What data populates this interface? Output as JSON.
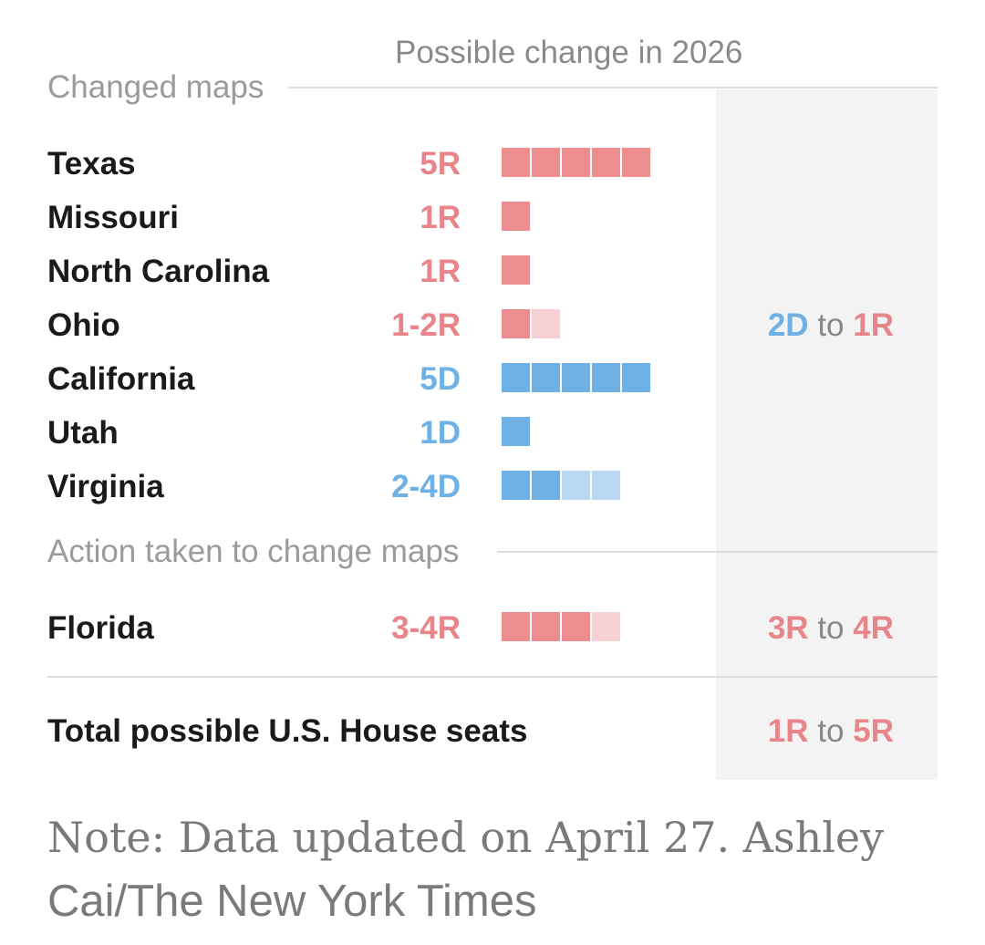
{
  "chart_data": {
    "type": "bar",
    "title": "Possible change in 2026",
    "sections": [
      {
        "label": "Changed maps",
        "rows": [
          {
            "state": "Texas",
            "label": "5R",
            "party": "R",
            "certain": 5,
            "possible": 0
          },
          {
            "state": "Missouri",
            "label": "1R",
            "party": "R",
            "certain": 1,
            "possible": 0
          },
          {
            "state": "North Carolina",
            "label": "1R",
            "party": "R",
            "certain": 1,
            "possible": 0
          },
          {
            "state": "Ohio",
            "label": "1-2R",
            "party": "R",
            "certain": 1,
            "possible": 1
          },
          {
            "state": "California",
            "label": "5D",
            "party": "D",
            "certain": 5,
            "possible": 0
          },
          {
            "state": "Utah",
            "label": "1D",
            "party": "D",
            "certain": 1,
            "possible": 0
          },
          {
            "state": "Virginia",
            "label": "2-4D",
            "party": "D",
            "certain": 2,
            "possible": 2
          }
        ],
        "range": {
          "from": "2D",
          "from_party": "D",
          "to_word": "to",
          "to": "1R",
          "to_party": "R"
        }
      },
      {
        "label": "Action taken to change maps",
        "rows": [
          {
            "state": "Florida",
            "label": "3-4R",
            "party": "R",
            "certain": 3,
            "possible": 1
          }
        ],
        "range": {
          "from": "3R",
          "from_party": "R",
          "to_word": "to",
          "to": "4R",
          "to_party": "R"
        }
      }
    ],
    "total": {
      "label": "Total possible U.S. House seats",
      "from": "1R",
      "to_word": "to",
      "to": "5R"
    }
  },
  "colors": {
    "republican": "#ee8d90",
    "republican_light": "#f6d0d2",
    "democrat": "#6fb1e4",
    "democrat_light": "#b9d8f4",
    "shade": "#f3f3f3"
  },
  "note": {
    "line1": "Note: Data updated on April 27.  Ashley",
    "line2": "Cai/The New York Times"
  }
}
